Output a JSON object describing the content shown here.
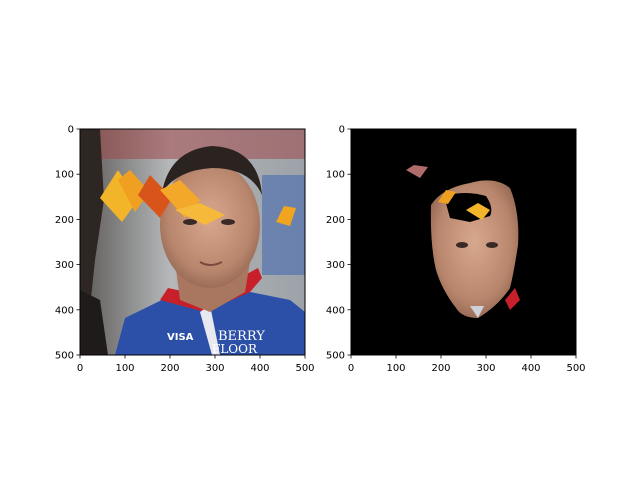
{
  "chart_data": [
    {
      "type": "image",
      "content": "face photo with autumn leaves overlay",
      "xlim": [
        0,
        500
      ],
      "ylim": [
        500,
        0
      ],
      "xticks": [
        0,
        100,
        200,
        300,
        400,
        500
      ],
      "yticks": [
        0,
        100,
        200,
        300,
        400,
        500
      ],
      "xtick_labels": [
        "0",
        "100",
        "200",
        "300",
        "400",
        "500"
      ],
      "ytick_labels": [
        "0",
        "100",
        "200",
        "300",
        "400",
        "500"
      ],
      "shirt_text": [
        "VISA",
        "BERRY",
        "FLOOR"
      ]
    },
    {
      "type": "image",
      "content": "segmented face mask on black background",
      "xlim": [
        0,
        500
      ],
      "ylim": [
        500,
        0
      ],
      "xticks": [
        0,
        100,
        200,
        300,
        400,
        500
      ],
      "yticks": [
        0,
        100,
        200,
        300,
        400,
        500
      ],
      "xtick_labels": [
        "0",
        "100",
        "200",
        "300",
        "400",
        "500"
      ],
      "ytick_labels": [
        "0",
        "100",
        "200",
        "300",
        "400",
        "500"
      ]
    }
  ],
  "colors": {
    "background_left": "#7f8a8f",
    "jersey": "#2c4fa8",
    "skin": "#c99a80",
    "hair": "#2a2320",
    "leaves": "#f0a020",
    "mask_bg": "#000000"
  }
}
